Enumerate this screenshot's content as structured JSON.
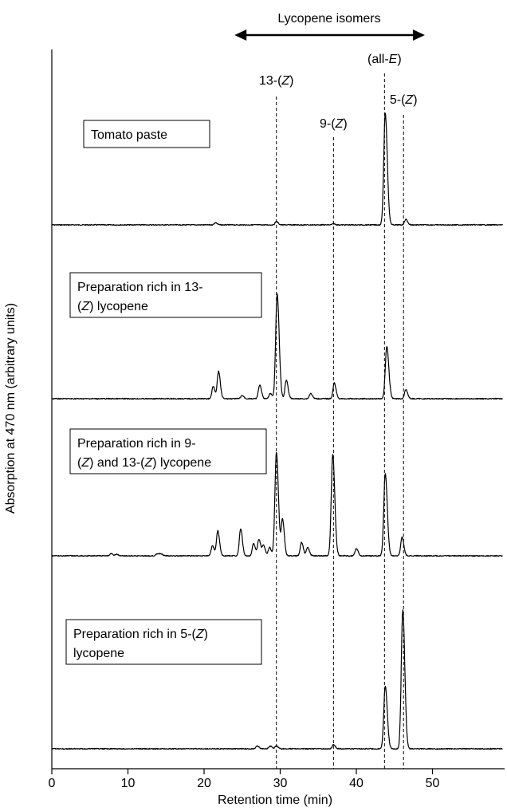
{
  "chart_data": {
    "type": "line",
    "title": "",
    "top_label": "Lycopene isomers",
    "xlabel": "Retention time (min)",
    "ylabel": "Absorption at 470 nm (arbitrary units)",
    "xlim": [
      0,
      59
    ],
    "xticks": [
      0,
      10,
      20,
      30,
      40,
      50
    ],
    "range_arrow": [
      24,
      49
    ],
    "markers": [
      {
        "label_pre": "13-(",
        "label_it": "Z",
        "label_post": ")",
        "x": 29.5
      },
      {
        "label_pre": "9-(",
        "label_it": "Z",
        "label_post": ")",
        "x": 37
      },
      {
        "label_pre": "(all-",
        "label_it": "E",
        "label_post": ")",
        "x": 43.7
      },
      {
        "label_pre": "5-(",
        "label_it": "Z",
        "label_post": ")",
        "x": 46.2
      }
    ],
    "series": [
      {
        "label_lines": [
          "Tomato paste"
        ],
        "peaks": [
          {
            "x": 21.5,
            "h": 0.02
          },
          {
            "x": 29.5,
            "h": 0.03
          },
          {
            "x": 37.0,
            "h": 0.01
          },
          {
            "x": 43.8,
            "h": 1.0
          },
          {
            "x": 46.5,
            "h": 0.05
          }
        ]
      },
      {
        "label_lines": [
          "Preparation rich in 13-",
          "(Z) lycopene"
        ],
        "peaks": [
          {
            "x": 21.2,
            "h": 0.12
          },
          {
            "x": 21.9,
            "h": 0.26
          },
          {
            "x": 25.0,
            "h": 0.03
          },
          {
            "x": 27.3,
            "h": 0.13
          },
          {
            "x": 28.7,
            "h": 0.05
          },
          {
            "x": 29.6,
            "h": 1.0
          },
          {
            "x": 30.8,
            "h": 0.18
          },
          {
            "x": 34.0,
            "h": 0.05
          },
          {
            "x": 37.1,
            "h": 0.15
          },
          {
            "x": 44.0,
            "h": 0.5
          },
          {
            "x": 46.5,
            "h": 0.09
          }
        ]
      },
      {
        "label_lines": [
          "Preparation rich in 9-",
          "(Z) and 13-(Z) lycopene"
        ],
        "peaks": [
          {
            "x": 7.8,
            "h": 0.02
          },
          {
            "x": 8.5,
            "h": 0.015
          },
          {
            "x": 13.8,
            "h": 0.02
          },
          {
            "x": 14.3,
            "h": 0.02
          },
          {
            "x": 21.1,
            "h": 0.1
          },
          {
            "x": 21.8,
            "h": 0.24
          },
          {
            "x": 24.8,
            "h": 0.26
          },
          {
            "x": 26.5,
            "h": 0.12
          },
          {
            "x": 27.2,
            "h": 0.16
          },
          {
            "x": 27.8,
            "h": 0.1
          },
          {
            "x": 28.6,
            "h": 0.08
          },
          {
            "x": 29.5,
            "h": 1.0
          },
          {
            "x": 30.3,
            "h": 0.35
          },
          {
            "x": 32.8,
            "h": 0.13
          },
          {
            "x": 33.6,
            "h": 0.08
          },
          {
            "x": 36.9,
            "h": 0.98
          },
          {
            "x": 40.0,
            "h": 0.07
          },
          {
            "x": 43.8,
            "h": 0.79
          },
          {
            "x": 46.0,
            "h": 0.18
          }
        ]
      },
      {
        "label_lines": [
          "Preparation rich in 5-(Z)",
          "lycopene"
        ],
        "peaks": [
          {
            "x": 27.0,
            "h": 0.02
          },
          {
            "x": 28.7,
            "h": 0.02
          },
          {
            "x": 29.5,
            "h": 0.02
          },
          {
            "x": 37.0,
            "h": 0.03
          },
          {
            "x": 43.8,
            "h": 0.45
          },
          {
            "x": 46.1,
            "h": 1.0
          }
        ]
      }
    ]
  }
}
